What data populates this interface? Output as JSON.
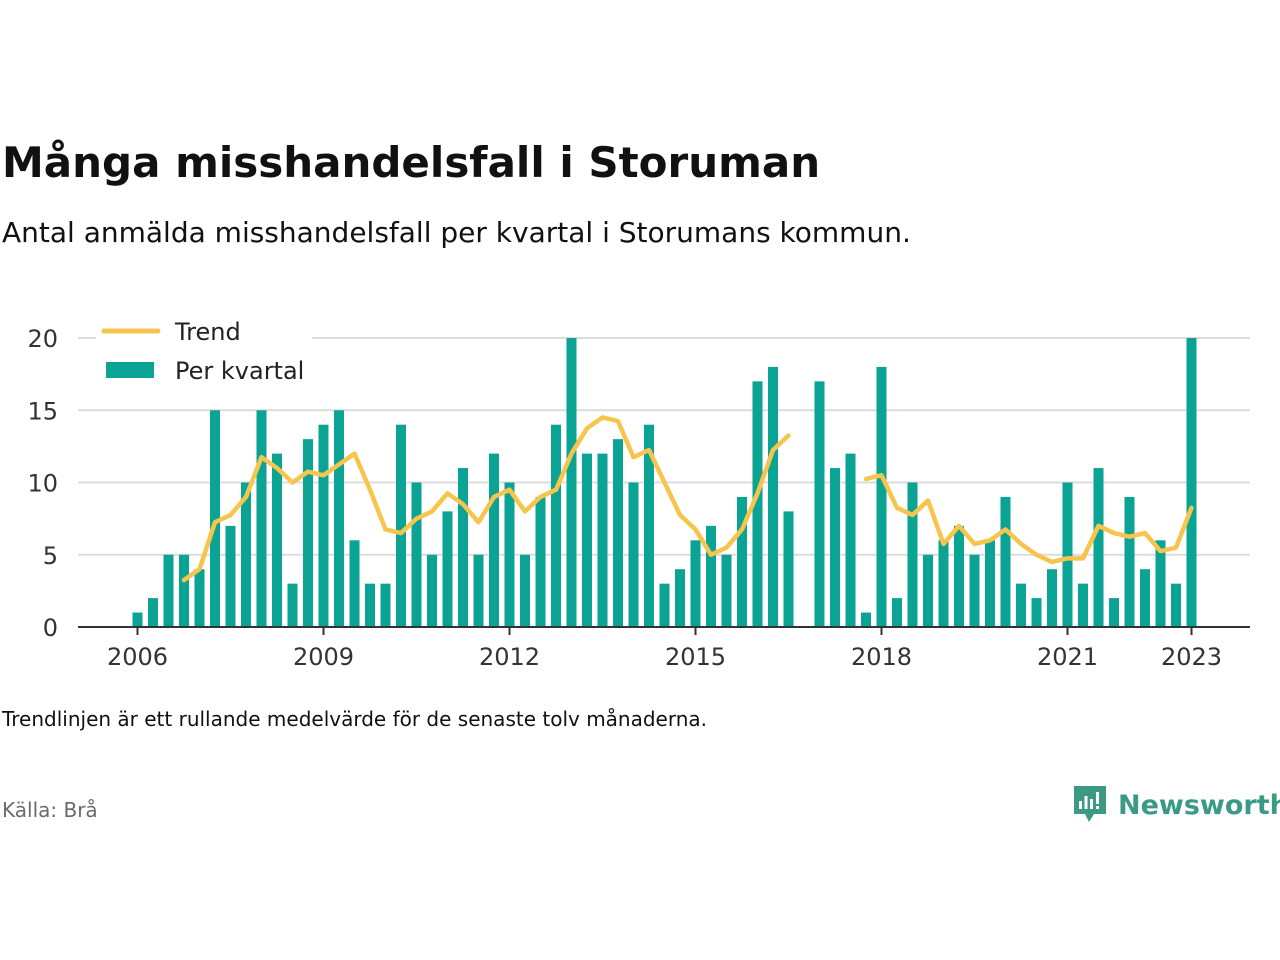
{
  "title": "Många misshandelsfall i Storuman",
  "subtitle": "Antal anmälda misshandelsfall per kvartal i Storumans kommun.",
  "footnote": "Trendlinjen är ett rullande medelvärde för de senaste tolv månaderna.",
  "source": "Källa: Brå",
  "brand": "Newsworthy",
  "colors": {
    "bar": "#0aa394",
    "trend": "#f7c44c",
    "grid": "#dcdcdc",
    "axis": "#333333",
    "brand": "#3a9a86"
  },
  "chart_data": {
    "type": "bar",
    "x_unit": "quarter",
    "start": "2006 Q1",
    "ylim": [
      0,
      20
    ],
    "yticks": [
      0,
      5,
      10,
      15,
      20
    ],
    "xticks": [
      "2006",
      "2009",
      "2012",
      "2015",
      "2018",
      "2021",
      "2023"
    ],
    "legend": {
      "position": "top-left",
      "entries": [
        "Trend",
        "Per kvartal"
      ]
    },
    "grid": true,
    "series": [
      {
        "name": "Per kvartal",
        "type": "bar",
        "values": [
          1,
          2,
          5,
          5,
          4,
          15,
          7,
          10,
          15,
          12,
          3,
          13,
          14,
          15,
          6,
          3,
          3,
          14,
          10,
          5,
          8,
          11,
          5,
          12,
          10,
          5,
          9,
          14,
          20,
          12,
          12,
          13,
          10,
          14,
          3,
          4,
          6,
          7,
          5,
          9,
          17,
          18,
          8,
          null,
          17,
          11,
          12,
          1,
          18,
          2,
          10,
          5,
          6,
          7,
          5,
          6,
          9,
          3,
          2,
          4,
          10,
          3,
          11,
          2,
          9,
          4,
          6,
          3,
          20
        ]
      },
      {
        "name": "Trend",
        "type": "line",
        "values": [
          null,
          null,
          null,
          3.25,
          4,
          7.25,
          7.75,
          9,
          11.75,
          11,
          10,
          10.75,
          10.5,
          11.25,
          12,
          9.5,
          6.75,
          6.5,
          7.5,
          8,
          9.25,
          8.5,
          7.25,
          9,
          9.5,
          8,
          9,
          9.5,
          12,
          13.75,
          14.5,
          14.25,
          11.75,
          12.25,
          10,
          7.75,
          6.75,
          5,
          5.5,
          6.75,
          9.25,
          12.25,
          13.25,
          null,
          null,
          null,
          null,
          10.25,
          10.5,
          8.25,
          7.75,
          8.75,
          5.75,
          7,
          5.75,
          6,
          6.75,
          5.75,
          5,
          4.5,
          4.75,
          4.75,
          7,
          6.5,
          6.25,
          6.5,
          5.25,
          5.5,
          8.25
        ]
      }
    ]
  }
}
